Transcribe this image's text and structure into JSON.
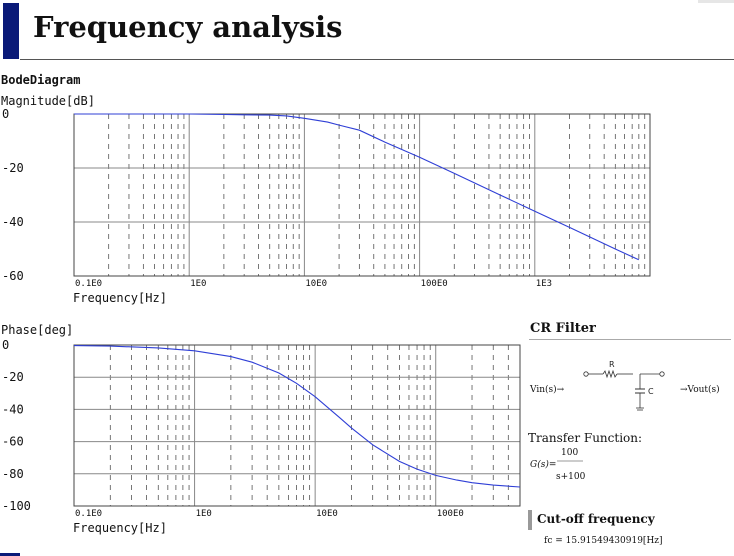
{
  "page": {
    "title": "Frequency analysis"
  },
  "bode": {
    "title": "BodeDiagram"
  },
  "magnitude_chart": {
    "ylabel": "Magnitude[dB]",
    "xlabel": "Frequency[Hz]"
  },
  "phase_chart": {
    "ylabel": "Phase[deg]",
    "xlabel": "Frequency[Hz]"
  },
  "filter": {
    "title": "CR Filter",
    "resistor": "R",
    "capacitor": "C",
    "input": "Vin(s)→",
    "output": "→Vout(s)",
    "transfer_label": "Transfer Function:",
    "g_label": "G(s)=",
    "numerator": "100",
    "denominator": "s+100"
  },
  "cutoff": {
    "title": "Cut-off frequency",
    "value": "fc = 15.91549430919[Hz]"
  },
  "colors": {
    "curve": "#2f3fd6",
    "accent": "#0a1a78",
    "grid": "#888888"
  },
  "chart_data": [
    {
      "type": "line",
      "title": "",
      "xlabel": "Frequency[Hz]",
      "ylabel": "Magnitude[dB]",
      "x_scale": "log",
      "xlim": [
        0.1,
        10000
      ],
      "ylim": [
        -60,
        0
      ],
      "yticks": [
        "0",
        "-20",
        "-40",
        "-60"
      ],
      "xticks": [
        {
          "x": 0.1,
          "label": "0.1E0"
        },
        {
          "x": 1,
          "label": "1E0"
        },
        {
          "x": 10,
          "label": "10E0"
        },
        {
          "x": 100,
          "label": "100E0"
        },
        {
          "x": 1000,
          "label": "1E3"
        }
      ],
      "grid": true,
      "series": [
        {
          "x": [
            0.1,
            0.5,
            1,
            2,
            3,
            5,
            7,
            10,
            15.9,
            20,
            30,
            50,
            100,
            200,
            500,
            1000,
            2000,
            5000,
            8000
          ],
          "values": [
            0,
            0,
            0,
            -0.2,
            -0.3,
            -0.4,
            -0.7,
            -1.6,
            -3.0,
            -4.1,
            -6.0,
            -10.4,
            -16.0,
            -22.0,
            -30.0,
            -36.0,
            -42.0,
            -50.0,
            -54.0
          ]
        }
      ]
    },
    {
      "type": "line",
      "title": "",
      "xlabel": "Frequency[Hz]",
      "ylabel": "Phase[deg]",
      "x_scale": "log",
      "xlim": [
        0.1,
        500
      ],
      "ylim": [
        -100,
        0
      ],
      "yticks": [
        "0",
        "-20",
        "-40",
        "-60",
        "-80",
        "-100"
      ],
      "xticks": [
        {
          "x": 0.1,
          "label": "0.1E0"
        },
        {
          "x": 1,
          "label": "1E0"
        },
        {
          "x": 10,
          "label": "10E0"
        },
        {
          "x": 100,
          "label": "100E0"
        }
      ],
      "grid": true,
      "series": [
        {
          "x": [
            0.1,
            0.2,
            0.5,
            1,
            2,
            3,
            5,
            7,
            10,
            15.9,
            20,
            30,
            50,
            70,
            100,
            150,
            200,
            300,
            500
          ],
          "values": [
            -0.4,
            -0.7,
            -1.8,
            -3.6,
            -7.2,
            -10.7,
            -17.4,
            -23.8,
            -32.1,
            -45.0,
            -51.5,
            -62.0,
            -72.3,
            -77.1,
            -81.0,
            -83.9,
            -85.5,
            -87.0,
            -88.2
          ]
        }
      ]
    }
  ]
}
